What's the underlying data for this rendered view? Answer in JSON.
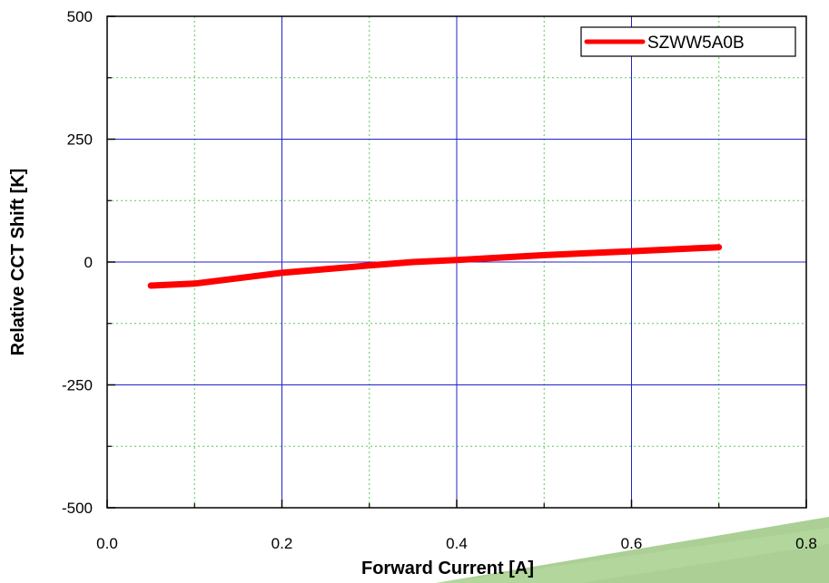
{
  "chart_data": {
    "type": "line",
    "title": "",
    "xlabel": "Forward Current [A]",
    "ylabel": "Relative CCT Shift [K]",
    "xlim": [
      0.0,
      0.8
    ],
    "ylim": [
      -500,
      500
    ],
    "x_ticks": [
      {
        "value": 0.0,
        "label": "0.0"
      },
      {
        "value": 0.2,
        "label": "0.2"
      },
      {
        "value": 0.4,
        "label": "0.4"
      },
      {
        "value": 0.6,
        "label": "0.6"
      },
      {
        "value": 0.8,
        "label": "0.8"
      }
    ],
    "y_ticks": [
      {
        "value": 500,
        "label": "500"
      },
      {
        "value": 250,
        "label": "250"
      },
      {
        "value": 0,
        "label": "0"
      },
      {
        "value": -250,
        "label": "-250"
      },
      {
        "value": -500,
        "label": "-500"
      }
    ],
    "x_minor_gridlines": [
      0.1,
      0.3,
      0.5,
      0.7
    ],
    "y_minor_gridlines": [
      375,
      125,
      -125,
      -375
    ],
    "grid": true,
    "major_grid_color": "#2222cc",
    "minor_grid_color": "#55cc55",
    "legend_position": "top-right",
    "series": [
      {
        "name": "SZWW5A0B",
        "color": "#ff0000",
        "x": [
          0.05,
          0.1,
          0.2,
          0.3,
          0.35,
          0.4,
          0.5,
          0.6,
          0.7
        ],
        "y": [
          -48,
          -44,
          -22,
          -7,
          0,
          4,
          14,
          22,
          30
        ]
      }
    ]
  }
}
